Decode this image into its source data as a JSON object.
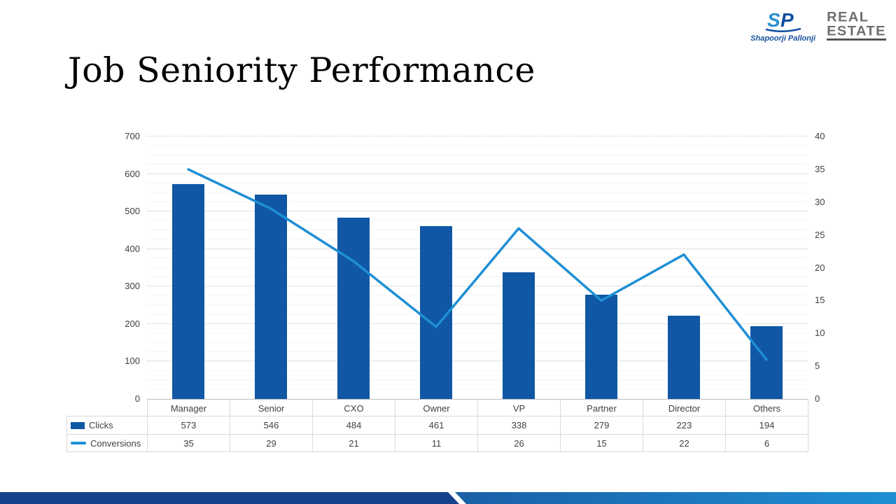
{
  "slide": {
    "title": "Job Seniority Performance",
    "logo": {
      "monogram": "SP",
      "brand": "Shapoorji Pallonji",
      "wordmark_line1": "REAL",
      "wordmark_line2": "ESTATE"
    }
  },
  "chart_data": {
    "type": "combo-bar-line",
    "title": "Job Seniority Performance",
    "categories": [
      "Manager",
      "Senior",
      "CXO",
      "Owner",
      "VP",
      "Partner",
      "Director",
      "Others"
    ],
    "series": [
      {
        "name": "Clicks",
        "type": "bar",
        "axis": "left",
        "color": "#1057A5",
        "values": [
          573,
          546,
          484,
          461,
          338,
          279,
          223,
          194
        ]
      },
      {
        "name": "Conversions",
        "type": "line",
        "axis": "right",
        "color": "#1E8FD5",
        "values": [
          35,
          29,
          21,
          11,
          26,
          15,
          22,
          6
        ]
      }
    ],
    "left_axis": {
      "min": 0,
      "max": 700,
      "step": 100,
      "ticks": [
        "0",
        "100",
        "200",
        "300",
        "400",
        "500",
        "600",
        "700"
      ]
    },
    "right_axis": {
      "min": 0,
      "max": 40,
      "step": 5,
      "ticks": [
        "0",
        "5",
        "10",
        "15",
        "20",
        "25",
        "30",
        "35",
        "40"
      ]
    },
    "grid": true,
    "legend_position": "table-left"
  },
  "colors": {
    "bar": "#1057A5",
    "line": "#1E8FD5",
    "footer_left": "#16418C",
    "footer_right_start": "#1A5FA6",
    "footer_right_end": "#1E8FD5",
    "brand_blue": "#15509C",
    "monogram_light": "#2A8FD0",
    "monogram_dark": "#0F4F9F",
    "wordmark_gray": "#6D6E71"
  }
}
